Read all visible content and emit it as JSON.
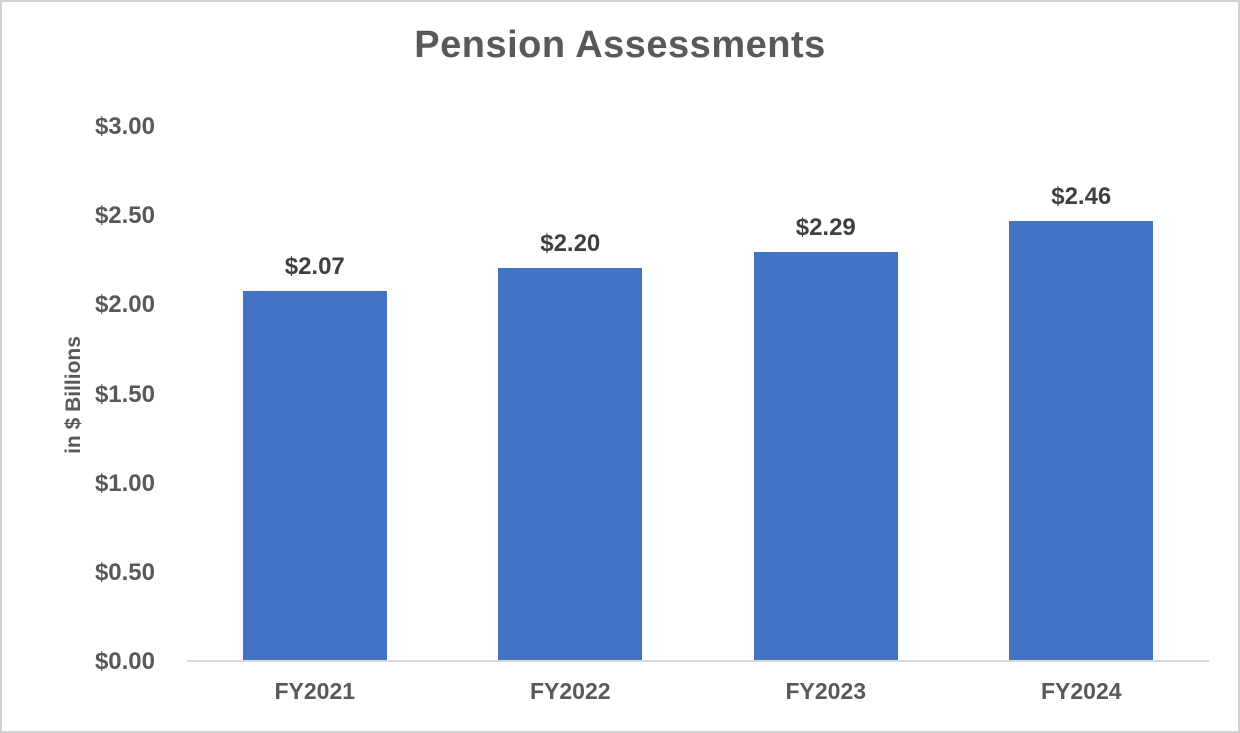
{
  "chart_data": {
    "type": "bar",
    "title": "Pension Assessments",
    "categories": [
      "FY2021",
      "FY2022",
      "FY2023",
      "FY2024"
    ],
    "values": [
      2.07,
      2.2,
      2.29,
      2.46
    ],
    "data_labels": [
      "$2.07",
      "$2.20",
      "$2.29",
      "$2.46"
    ],
    "xlabel": "",
    "ylabel": "in $ Billions",
    "ylim": [
      0,
      3
    ],
    "ytick_step": 0.5,
    "ytick_labels": [
      "$0.00",
      "$0.50",
      "$1.00",
      "$1.50",
      "$2.00",
      "$2.50",
      "$3.00"
    ],
    "grid": false,
    "legend_position": "none",
    "bar_color": "#4472C4",
    "axis_line_color": "#D9D9D9",
    "title_color": "#595959",
    "tick_label_color": "#595959",
    "data_label_color": "#404040"
  }
}
